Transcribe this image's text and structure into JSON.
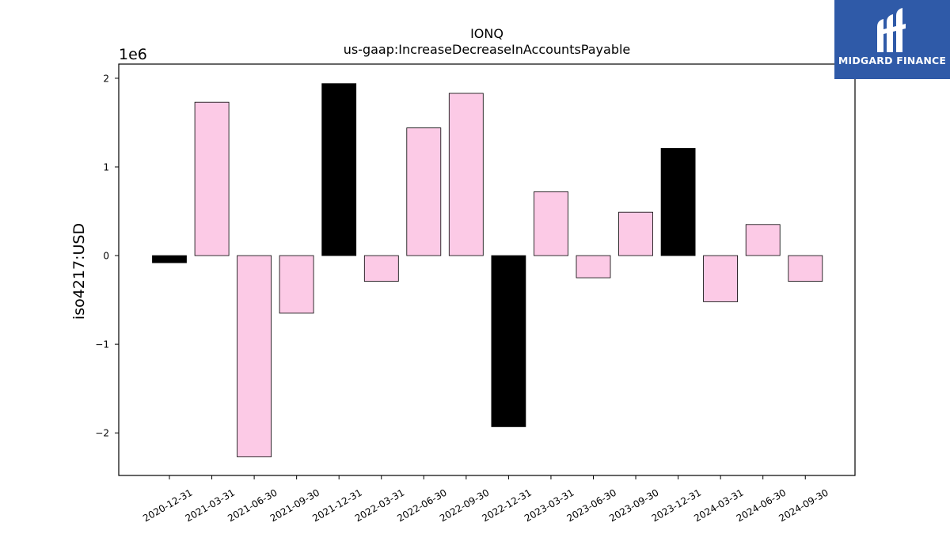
{
  "chart_data": {
    "type": "bar",
    "title": "IONQ",
    "subtitle": "us-gaap:IncreaseDecreaseInAccountsPayable",
    "xlabel": "",
    "ylabel": "iso4217:USD",
    "y_scale_label": "1e6",
    "y_scale": 1000000,
    "ylim": [
      -2.48,
      2.16
    ],
    "yticks": [
      -2,
      -1,
      0,
      1,
      2
    ],
    "ytick_labels": [
      "−2",
      "−1",
      "0",
      "1",
      "2"
    ],
    "grid": false,
    "legend": "none",
    "categories": [
      "2020-12-31",
      "2021-03-31",
      "2021-06-30",
      "2021-09-30",
      "2021-12-31",
      "2022-03-31",
      "2022-06-30",
      "2022-09-30",
      "2022-12-31",
      "2023-03-31",
      "2023-06-30",
      "2023-09-30",
      "2023-12-31",
      "2024-03-31",
      "2024-06-30",
      "2024-09-30"
    ],
    "values": [
      -0.08,
      1.73,
      -2.27,
      -0.65,
      1.94,
      -0.29,
      1.44,
      1.83,
      -1.93,
      0.72,
      -0.25,
      0.49,
      1.21,
      -0.52,
      0.35,
      -0.29
    ],
    "highlight": [
      true,
      false,
      false,
      false,
      true,
      false,
      false,
      false,
      true,
      false,
      false,
      false,
      true,
      false,
      false,
      false
    ],
    "colors": {
      "bar": "#fccae6",
      "highlight": "#000000",
      "edge": "#000000"
    }
  },
  "logo": {
    "text": "MIDGARD FINANCE",
    "background": "#2f5aa8"
  }
}
